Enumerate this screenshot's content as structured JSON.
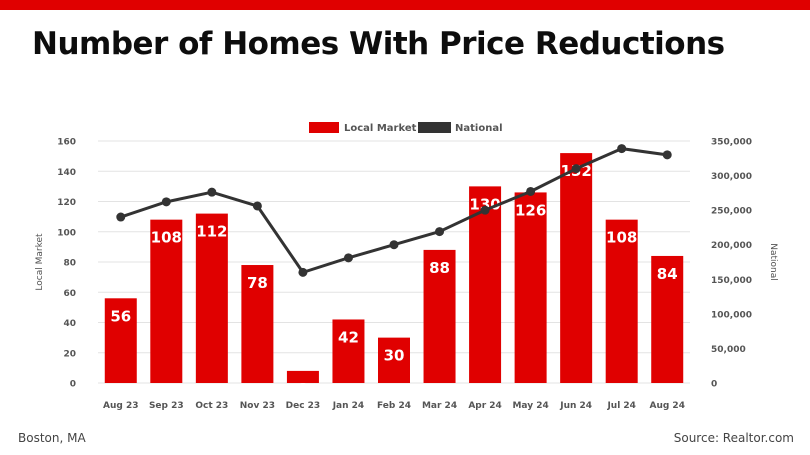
{
  "header": {
    "title": "Number of Homes With Price Reductions"
  },
  "footer": {
    "location": "Boston, MA",
    "source": "Source: Realtor.com"
  },
  "colors": {
    "brand_red": "#e00000",
    "line": "#333333",
    "grid": "#e3e3e3",
    "axis_text": "#555555"
  },
  "chart_data": {
    "type": "bar",
    "title": "Number of Homes With Price Reductions",
    "categories": [
      "Aug 23",
      "Sep 23",
      "Oct 23",
      "Nov 23",
      "Dec 23",
      "Jan 24",
      "Feb 24",
      "Mar 24",
      "Apr 24",
      "May 24",
      "Jun 24",
      "Jul 24",
      "Aug 24"
    ],
    "series": [
      {
        "name": "Local Market",
        "type": "bar",
        "axis": "left",
        "color": "#e00000",
        "values": [
          56,
          108,
          112,
          78,
          8,
          42,
          30,
          88,
          130,
          126,
          152,
          108,
          84
        ]
      },
      {
        "name": "National",
        "type": "line",
        "axis": "right",
        "color": "#333333",
        "values": [
          240000,
          262000,
          276000,
          256000,
          160000,
          181000,
          200000,
          219000,
          250000,
          277000,
          310000,
          339000,
          330000
        ]
      }
    ],
    "ylabel": "Local Market",
    "ylabel_right": "National",
    "ylim": [
      0,
      160
    ],
    "yticks": [
      "0",
      "20",
      "40",
      "60",
      "80",
      "100",
      "120",
      "140",
      "160"
    ],
    "ylim_right": [
      0,
      350000
    ],
    "yticks_right": [
      "0",
      "50,000",
      "100,000",
      "150,000",
      "200,000",
      "250,000",
      "300,000",
      "350,000"
    ],
    "grid": true,
    "legend_position": "top-center"
  }
}
